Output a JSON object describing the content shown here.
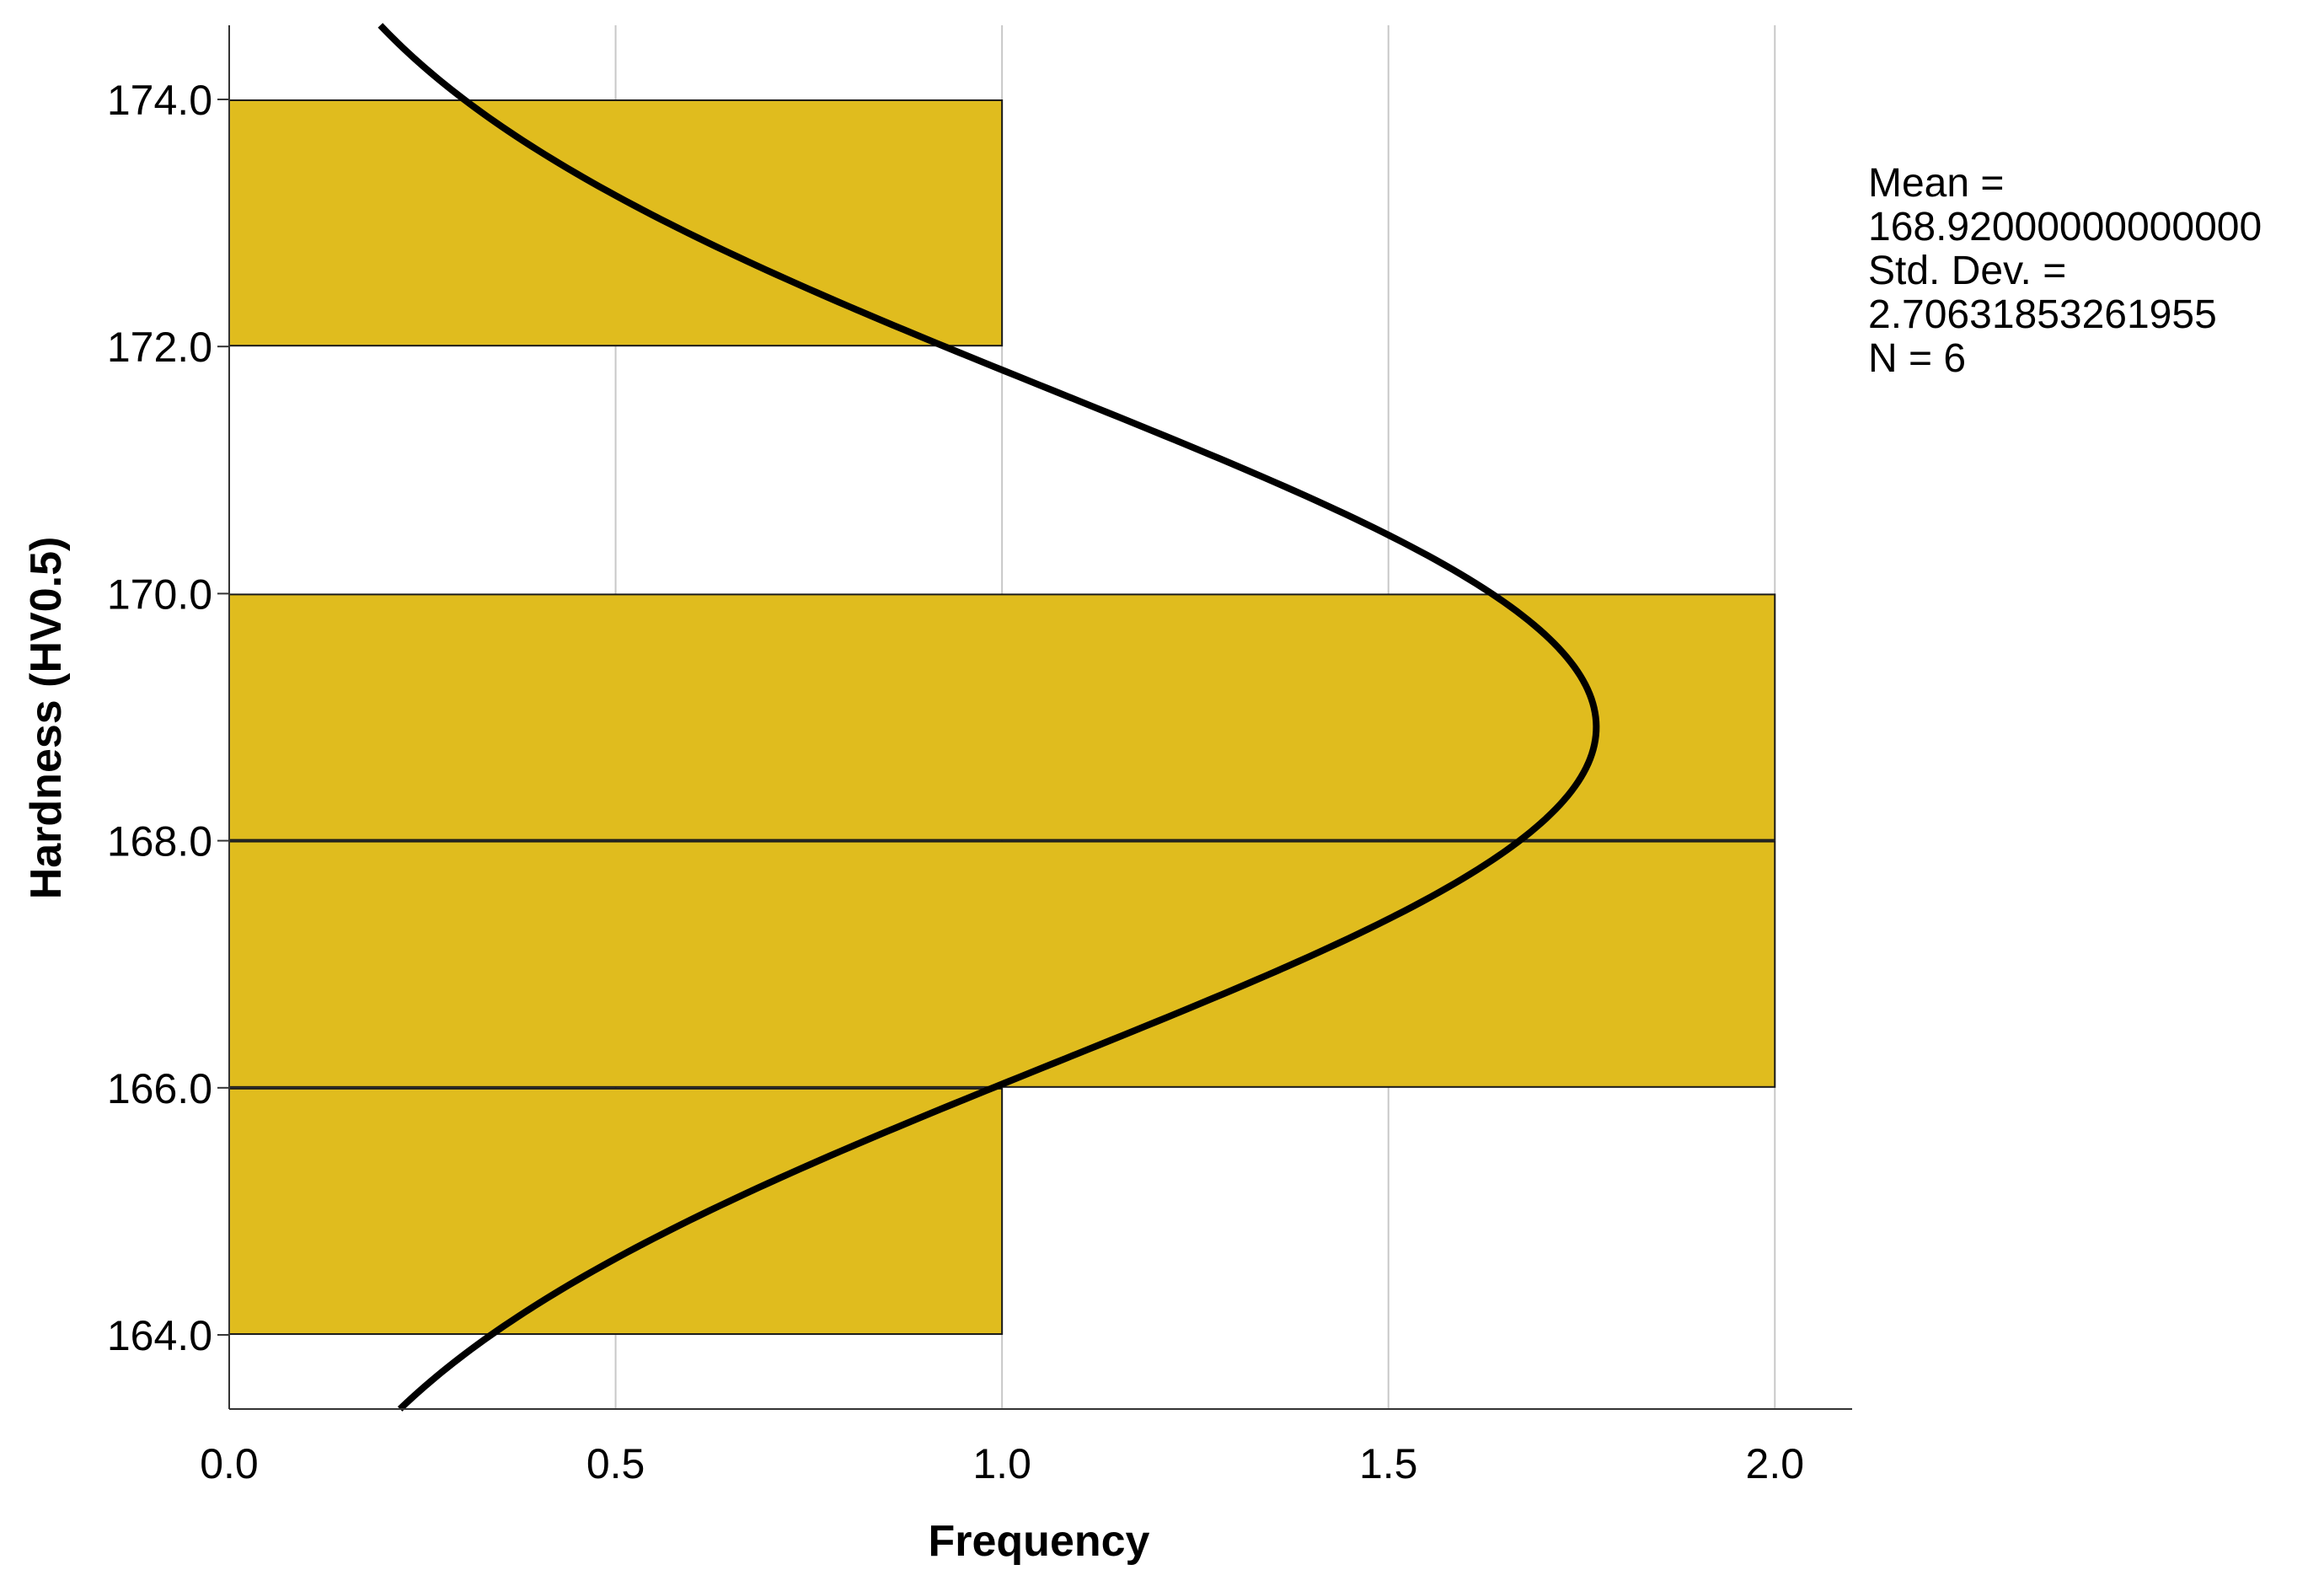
{
  "chart_data": {
    "type": "bar",
    "orientation": "horizontal",
    "bins": [
      {
        "low": 164.0,
        "high": 166.0,
        "frequency": 1
      },
      {
        "low": 166.0,
        "high": 168.0,
        "frequency": 2
      },
      {
        "low": 168.0,
        "high": 170.0,
        "frequency": 2
      },
      {
        "low": 172.0,
        "high": 174.0,
        "frequency": 1
      }
    ],
    "xlabel": "Frequency",
    "ylabel": "Hardness (HV0.5)",
    "xlim": [
      0,
      2.1
    ],
    "ylim": [
      163.4,
      174.6
    ],
    "x_ticks": [
      "0.0",
      "0.5",
      "1.0",
      "1.5",
      "2.0"
    ],
    "x_tick_values": [
      0,
      0.5,
      1.0,
      1.5,
      2.0
    ],
    "y_ticks": [
      "164.0",
      "166.0",
      "168.0",
      "170.0",
      "172.0",
      "174.0"
    ],
    "y_tick_values": [
      164,
      166,
      168,
      170,
      172,
      174
    ],
    "grid": "vertical",
    "normal_curve": {
      "mean": 168.92,
      "std": 2.70631853261955,
      "n": 6,
      "bin_width": 2
    },
    "bar_color": "#E0BC1E",
    "curve_color": "#000000",
    "stats": {
      "mean_label": "Mean =",
      "mean_value": "168.92000000000000",
      "std_label": "Std. Dev. =",
      "std_value": "2.70631853261955",
      "n_label": "N = 6"
    }
  }
}
